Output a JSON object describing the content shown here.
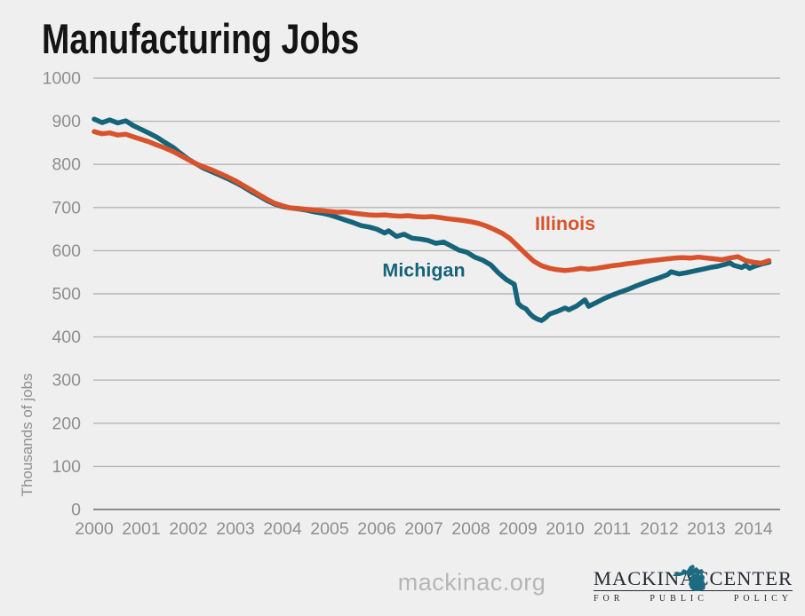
{
  "page": {
    "background": "#efefef"
  },
  "header": {
    "title": "Manufacturing Jobs"
  },
  "footer": {
    "watermark": "mackinac.org",
    "logo": {
      "word_left": "MACKINAC",
      "word_right": "CENTER",
      "tagline": {
        "w1": "FOR",
        "w2": "PUBLIC",
        "w3": "POLICY"
      },
      "icon": "michigan-state-icon",
      "icon_color": "#1d6b80",
      "text_color": "#272b33"
    }
  },
  "chart_data": {
    "type": "line",
    "title": "Manufacturing Jobs",
    "xlabel": "",
    "ylabel": "Thousands of jobs",
    "ylim": [
      0,
      1000
    ],
    "xlim": [
      2000,
      2014.6
    ],
    "yticks": [
      0,
      100,
      200,
      300,
      400,
      500,
      600,
      700,
      800,
      900,
      1000
    ],
    "xticks": [
      2000,
      2001,
      2002,
      2003,
      2004,
      2005,
      2006,
      2007,
      2008,
      2009,
      2010,
      2011,
      2012,
      2013,
      2014
    ],
    "grid": "horizontal-only",
    "legend_position": "inline-labels",
    "colors": {
      "grid": "#b5b5b5",
      "axis": "#8c8c8c",
      "tick_text": "#8f8f8f",
      "background": "#efefef"
    },
    "series": [
      {
        "name": "Michigan",
        "color": "#16647a",
        "label_anchor": {
          "x": 2007.0,
          "y": 540
        },
        "points": [
          [
            2000.0,
            905
          ],
          [
            2000.17,
            897
          ],
          [
            2000.33,
            903
          ],
          [
            2000.5,
            896
          ],
          [
            2000.67,
            901
          ],
          [
            2000.83,
            890
          ],
          [
            2001.0,
            881
          ],
          [
            2001.17,
            872
          ],
          [
            2001.33,
            863
          ],
          [
            2001.5,
            851
          ],
          [
            2001.67,
            840
          ],
          [
            2001.83,
            826
          ],
          [
            2002.0,
            812
          ],
          [
            2002.17,
            801
          ],
          [
            2002.33,
            791
          ],
          [
            2002.5,
            783
          ],
          [
            2002.67,
            775
          ],
          [
            2002.83,
            767
          ],
          [
            2003.0,
            758
          ],
          [
            2003.17,
            748
          ],
          [
            2003.33,
            737
          ],
          [
            2003.5,
            727
          ],
          [
            2003.67,
            716
          ],
          [
            2003.83,
            708
          ],
          [
            2004.0,
            702
          ],
          [
            2004.17,
            699
          ],
          [
            2004.33,
            697
          ],
          [
            2004.5,
            694
          ],
          [
            2004.67,
            690
          ],
          [
            2004.83,
            687
          ],
          [
            2005.0,
            683
          ],
          [
            2005.17,
            677
          ],
          [
            2005.33,
            671
          ],
          [
            2005.5,
            665
          ],
          [
            2005.67,
            658
          ],
          [
            2005.83,
            655
          ],
          [
            2006.0,
            650
          ],
          [
            2006.17,
            641
          ],
          [
            2006.25,
            646
          ],
          [
            2006.42,
            633
          ],
          [
            2006.58,
            638
          ],
          [
            2006.75,
            629
          ],
          [
            2006.92,
            627
          ],
          [
            2007.08,
            624
          ],
          [
            2007.25,
            617
          ],
          [
            2007.42,
            620
          ],
          [
            2007.58,
            611
          ],
          [
            2007.75,
            601
          ],
          [
            2007.92,
            596
          ],
          [
            2008.08,
            585
          ],
          [
            2008.25,
            578
          ],
          [
            2008.42,
            567
          ],
          [
            2008.58,
            549
          ],
          [
            2008.75,
            533
          ],
          [
            2008.92,
            522
          ],
          [
            2009.0,
            478
          ],
          [
            2009.08,
            470
          ],
          [
            2009.17,
            465
          ],
          [
            2009.25,
            454
          ],
          [
            2009.33,
            446
          ],
          [
            2009.42,
            441
          ],
          [
            2009.5,
            438
          ],
          [
            2009.58,
            444
          ],
          [
            2009.67,
            453
          ],
          [
            2009.83,
            459
          ],
          [
            2010.0,
            467
          ],
          [
            2010.08,
            463
          ],
          [
            2010.25,
            472
          ],
          [
            2010.42,
            486
          ],
          [
            2010.5,
            471
          ],
          [
            2010.67,
            480
          ],
          [
            2010.83,
            489
          ],
          [
            2011.0,
            497
          ],
          [
            2011.17,
            504
          ],
          [
            2011.33,
            510
          ],
          [
            2011.5,
            518
          ],
          [
            2011.67,
            525
          ],
          [
            2011.83,
            531
          ],
          [
            2012.0,
            537
          ],
          [
            2012.17,
            544
          ],
          [
            2012.25,
            551
          ],
          [
            2012.42,
            546
          ],
          [
            2012.58,
            549
          ],
          [
            2012.75,
            553
          ],
          [
            2012.92,
            557
          ],
          [
            2013.08,
            561
          ],
          [
            2013.25,
            564
          ],
          [
            2013.42,
            569
          ],
          [
            2013.5,
            572
          ],
          [
            2013.58,
            566
          ],
          [
            2013.75,
            561
          ],
          [
            2013.83,
            566
          ],
          [
            2013.92,
            559
          ],
          [
            2014.0,
            563
          ],
          [
            2014.17,
            569
          ],
          [
            2014.33,
            573
          ]
        ]
      },
      {
        "name": "Illinois",
        "color": "#d8532c",
        "label_anchor": {
          "x": 2010.0,
          "y": 648
        },
        "points": [
          [
            2000.0,
            876
          ],
          [
            2000.17,
            871
          ],
          [
            2000.33,
            873
          ],
          [
            2000.5,
            868
          ],
          [
            2000.67,
            870
          ],
          [
            2000.83,
            864
          ],
          [
            2001.0,
            858
          ],
          [
            2001.17,
            852
          ],
          [
            2001.33,
            845
          ],
          [
            2001.5,
            838
          ],
          [
            2001.67,
            830
          ],
          [
            2001.83,
            821
          ],
          [
            2002.0,
            811
          ],
          [
            2002.17,
            801
          ],
          [
            2002.33,
            794
          ],
          [
            2002.5,
            787
          ],
          [
            2002.67,
            779
          ],
          [
            2002.83,
            771
          ],
          [
            2003.0,
            762
          ],
          [
            2003.17,
            751
          ],
          [
            2003.33,
            741
          ],
          [
            2003.5,
            730
          ],
          [
            2003.67,
            719
          ],
          [
            2003.83,
            710
          ],
          [
            2004.0,
            704
          ],
          [
            2004.17,
            699
          ],
          [
            2004.33,
            698
          ],
          [
            2004.5,
            696
          ],
          [
            2004.67,
            694
          ],
          [
            2004.83,
            693
          ],
          [
            2005.0,
            691
          ],
          [
            2005.17,
            689
          ],
          [
            2005.33,
            690
          ],
          [
            2005.5,
            687
          ],
          [
            2005.67,
            685
          ],
          [
            2005.83,
            683
          ],
          [
            2006.0,
            682
          ],
          [
            2006.17,
            683
          ],
          [
            2006.33,
            681
          ],
          [
            2006.5,
            680
          ],
          [
            2006.67,
            681
          ],
          [
            2006.83,
            679
          ],
          [
            2007.0,
            678
          ],
          [
            2007.17,
            679
          ],
          [
            2007.33,
            677
          ],
          [
            2007.5,
            674
          ],
          [
            2007.67,
            672
          ],
          [
            2007.83,
            670
          ],
          [
            2008.0,
            667
          ],
          [
            2008.17,
            663
          ],
          [
            2008.33,
            657
          ],
          [
            2008.5,
            649
          ],
          [
            2008.67,
            640
          ],
          [
            2008.83,
            628
          ],
          [
            2009.0,
            610
          ],
          [
            2009.17,
            592
          ],
          [
            2009.33,
            576
          ],
          [
            2009.5,
            565
          ],
          [
            2009.67,
            559
          ],
          [
            2009.83,
            556
          ],
          [
            2010.0,
            554
          ],
          [
            2010.17,
            556
          ],
          [
            2010.33,
            559
          ],
          [
            2010.5,
            557
          ],
          [
            2010.67,
            559
          ],
          [
            2010.83,
            562
          ],
          [
            2011.0,
            565
          ],
          [
            2011.17,
            567
          ],
          [
            2011.33,
            570
          ],
          [
            2011.5,
            572
          ],
          [
            2011.67,
            575
          ],
          [
            2011.83,
            577
          ],
          [
            2012.0,
            579
          ],
          [
            2012.17,
            581
          ],
          [
            2012.33,
            583
          ],
          [
            2012.5,
            584
          ],
          [
            2012.67,
            583
          ],
          [
            2012.83,
            585
          ],
          [
            2013.0,
            583
          ],
          [
            2013.17,
            581
          ],
          [
            2013.33,
            579
          ],
          [
            2013.5,
            583
          ],
          [
            2013.67,
            586
          ],
          [
            2013.83,
            577
          ],
          [
            2014.0,
            573
          ],
          [
            2014.17,
            571
          ],
          [
            2014.33,
            577
          ]
        ]
      }
    ]
  }
}
